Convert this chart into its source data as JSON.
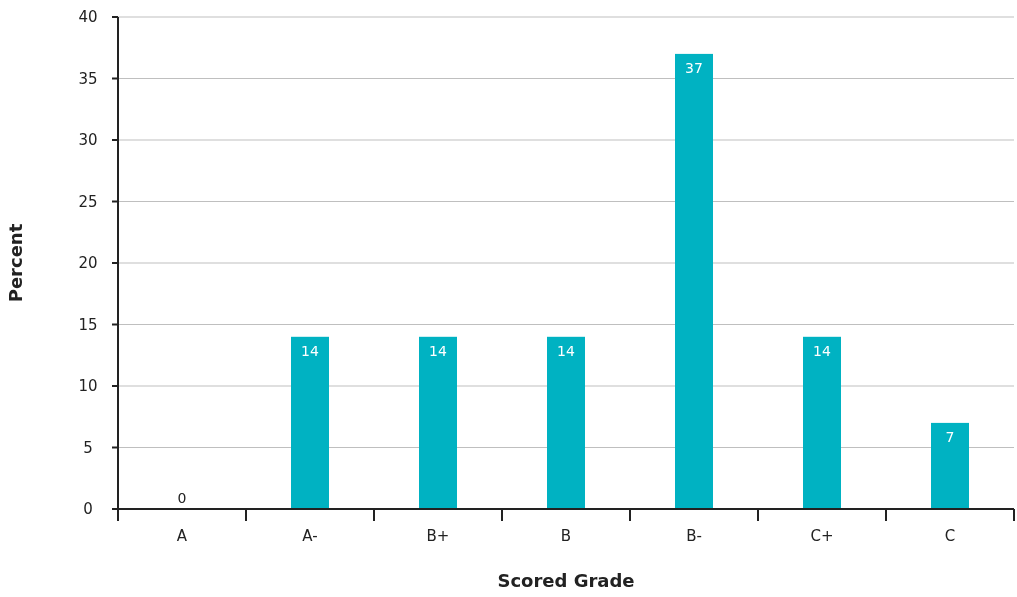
{
  "chart_data": {
    "type": "bar",
    "xlabel": "Scored Grade",
    "ylabel": "Percent",
    "categories": [
      "A",
      "A-",
      "B+",
      "B",
      "B-",
      "C+",
      "C"
    ],
    "values": [
      0,
      14,
      14,
      14,
      37,
      14,
      7
    ],
    "color": "#00b2c2",
    "ylim": [
      0,
      40
    ],
    "yticks": [
      0,
      5,
      10,
      15,
      20,
      25,
      30,
      35,
      40
    ],
    "grid": "y",
    "data_labels": true
  }
}
